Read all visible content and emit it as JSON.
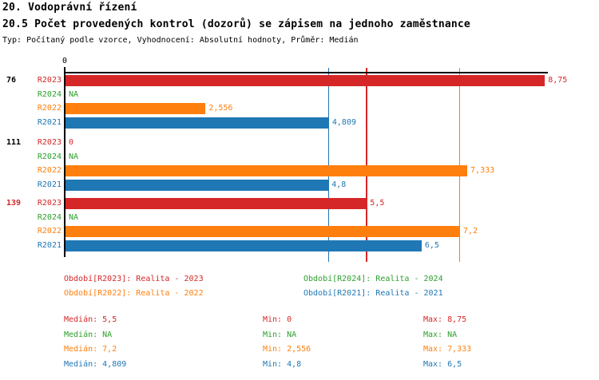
{
  "title": "20. Vodoprávní řízení",
  "subtitle": "20.5 Počet provedených kontrol (dozorů) se zápisem na jednoho zaměstnance",
  "meta": "Typ: Počítaný podle vzorce, Vyhodnocení: Absolutní hodnoty, Průměr: Medián",
  "colors": {
    "red": "#d62728",
    "green": "#2ca02c",
    "orange": "#ff7f0e",
    "blue": "#1f77b4",
    "axis": "#000000"
  },
  "chart_data": {
    "type": "bar",
    "orientation": "horizontal",
    "x_origin_label": "0",
    "xlim": [
      0,
      8.75
    ],
    "grid": "median-lines-only",
    "series_order": [
      "R2023",
      "R2024",
      "R2022",
      "R2021"
    ],
    "series_colors": {
      "R2023": "#d62728",
      "R2024": "#2ca02c",
      "R2022": "#ff7f0e",
      "R2021": "#1f77b4"
    },
    "groups": [
      {
        "label": "76",
        "label_color": "#000000",
        "bars": [
          {
            "series": "R2023",
            "value": 8.75,
            "display": "8,75"
          },
          {
            "series": "R2024",
            "value": null,
            "display": "NA"
          },
          {
            "series": "R2022",
            "value": 2.556,
            "display": "2,556"
          },
          {
            "series": "R2021",
            "value": 4.809,
            "display": "4,809"
          }
        ]
      },
      {
        "label": "111",
        "label_color": "#000000",
        "bars": [
          {
            "series": "R2023",
            "value": 0,
            "display": "0"
          },
          {
            "series": "R2024",
            "value": null,
            "display": "NA"
          },
          {
            "series": "R2022",
            "value": 7.333,
            "display": "7,333"
          },
          {
            "series": "R2021",
            "value": 4.8,
            "display": "4,8"
          }
        ]
      },
      {
        "label": "139",
        "label_color": "#d62728",
        "bars": [
          {
            "series": "R2023",
            "value": 5.5,
            "display": "5,5"
          },
          {
            "series": "R2024",
            "value": null,
            "display": "NA"
          },
          {
            "series": "R2022",
            "value": 7.2,
            "display": "7,2"
          },
          {
            "series": "R2021",
            "value": 6.5,
            "display": "6,5"
          }
        ]
      }
    ],
    "median_lines": [
      {
        "series": "R2021",
        "value": 4.809
      },
      {
        "series": "R2023",
        "value": 5.5
      },
      {
        "series": "R2022",
        "value": 7.2
      }
    ]
  },
  "legend": [
    {
      "series": "R2023",
      "label": "Období[R2023]: Realita - 2023"
    },
    {
      "series": "R2024",
      "label": "Období[R2024]: Realita - 2024"
    },
    {
      "series": "R2022",
      "label": "Období[R2022]: Realita - 2022"
    },
    {
      "series": "R2021",
      "label": "Období[R2021]: Realita - 2021"
    }
  ],
  "stats": [
    {
      "series": "R2023",
      "median": "Medián: 5,5",
      "min": "Min: 0",
      "max": "Max: 8,75"
    },
    {
      "series": "R2024",
      "median": "Medián: NA",
      "min": "Min: NA",
      "max": "Max: NA"
    },
    {
      "series": "R2022",
      "median": "Medián: 7,2",
      "min": "Min: 2,556",
      "max": "Max: 7,333"
    },
    {
      "series": "R2021",
      "median": "Medián: 4,809",
      "min": "Min: 4,8",
      "max": "Max: 6,5"
    }
  ]
}
